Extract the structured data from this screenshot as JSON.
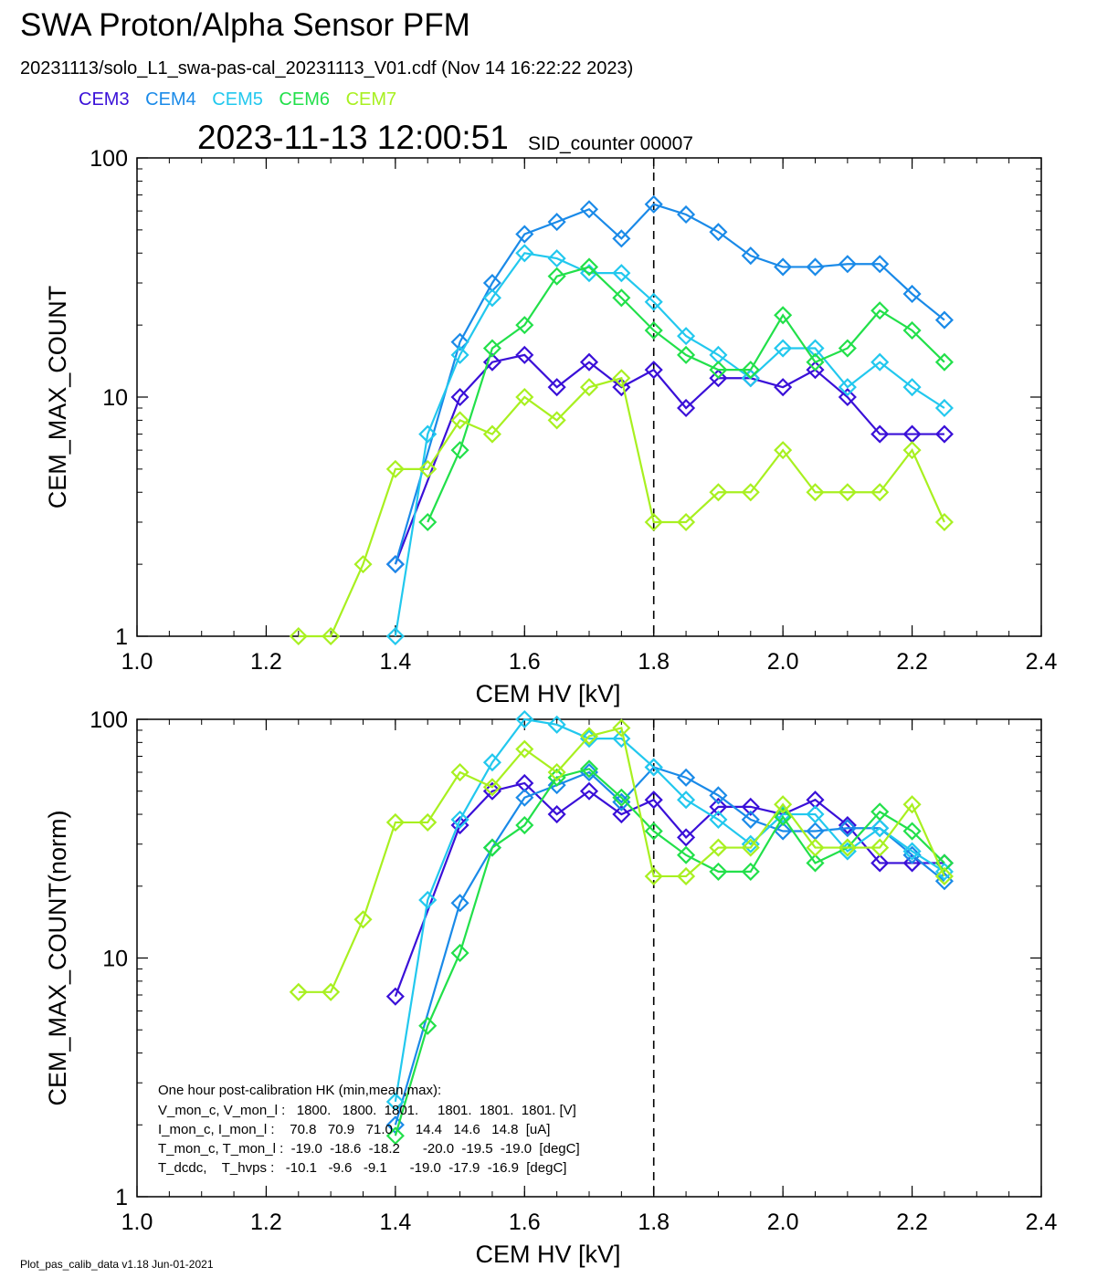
{
  "header": {
    "title": "SWA Proton/Alpha Sensor PFM",
    "subtitle": "20231113/solo_L1_swa-pas-cal_20231113_V01.cdf  (Nov 14 16:22:22 2023)",
    "timestamp": "2023-11-13 12:00:51",
    "sid_counter": "SID_counter 00007"
  },
  "footer": "Plot_pas_calib_data v1.18 Jun-01-2021",
  "colors": {
    "CEM3": "#3a10d8",
    "CEM4": "#1a8ae8",
    "CEM5": "#22c8ee",
    "CEM6": "#22e04a",
    "CEM7": "#a8f020"
  },
  "legend": [
    "CEM3",
    "CEM4",
    "CEM5",
    "CEM6",
    "CEM7"
  ],
  "hk_box": {
    "title": "One hour post-calibration HK (min,mean,max):",
    "rows": [
      "V_mon_c, V_mon_l :   1800.   1800.  1801.     1801.  1801.  1801. [V]",
      "I_mon_c, I_mon_l :    70.8   70.9   71.0      14.4   14.6   14.8  [uA]",
      "T_mon_c, T_mon_l :  -19.0  -18.6  -18.2      -20.0  -19.5  -19.0  [degC]",
      "T_dcdc,    T_hvps :   -10.1   -9.6   -9.1      -19.0  -17.9  -16.9  [degC]"
    ]
  },
  "chart_data": [
    {
      "type": "line",
      "xlabel": "CEM HV [kV]",
      "ylabel": "CEM_MAX_COUNT",
      "xlim": [
        1.0,
        2.4
      ],
      "ylim": [
        1,
        100
      ],
      "yscale": "log",
      "xticks": [
        "1.0",
        "1.2",
        "1.4",
        "1.6",
        "1.8",
        "2.0",
        "2.2",
        "2.4"
      ],
      "yticks": [
        "1",
        "10",
        "100"
      ],
      "vline": 1.8,
      "series": [
        {
          "name": "CEM3",
          "x": [
            1.4,
            1.5,
            1.55,
            1.6,
            1.65,
            1.7,
            1.75,
            1.8,
            1.85,
            1.9,
            1.95,
            2.0,
            2.05,
            2.1,
            2.15,
            2.2,
            2.25
          ],
          "y": [
            2,
            10,
            14,
            15,
            11,
            14,
            11,
            13,
            9,
            12,
            12,
            11,
            13,
            10,
            7,
            7,
            7
          ]
        },
        {
          "name": "CEM4",
          "x": [
            1.4,
            1.5,
            1.55,
            1.6,
            1.65,
            1.7,
            1.75,
            1.8,
            1.85,
            1.9,
            1.95,
            2.0,
            2.05,
            2.1,
            2.15,
            2.2,
            2.25
          ],
          "y": [
            2,
            17,
            30,
            48,
            54,
            61,
            46,
            64,
            58,
            49,
            39,
            35,
            35,
            36,
            36,
            27,
            21
          ]
        },
        {
          "name": "CEM5",
          "x": [
            1.4,
            1.45,
            1.5,
            1.55,
            1.6,
            1.65,
            1.7,
            1.75,
            1.8,
            1.85,
            1.9,
            1.95,
            2.0,
            2.05,
            2.1,
            2.15,
            2.2,
            2.25
          ],
          "y": [
            1,
            7,
            15,
            26,
            40,
            38,
            33,
            33,
            25,
            18,
            15,
            12,
            16,
            16,
            11,
            14,
            11,
            9
          ]
        },
        {
          "name": "CEM6",
          "x": [
            1.45,
            1.5,
            1.55,
            1.6,
            1.65,
            1.7,
            1.75,
            1.8,
            1.85,
            1.9,
            1.95,
            2.0,
            2.05,
            2.1,
            2.15,
            2.2,
            2.25
          ],
          "y": [
            3,
            6,
            16,
            20,
            32,
            35,
            26,
            19,
            15,
            13,
            13,
            22,
            14,
            16,
            23,
            19,
            14
          ]
        },
        {
          "name": "CEM7",
          "x": [
            1.25,
            1.3,
            1.35,
            1.4,
            1.45,
            1.5,
            1.55,
            1.6,
            1.65,
            1.7,
            1.75,
            1.8,
            1.85,
            1.9,
            1.95,
            2.0,
            2.05,
            2.1,
            2.15,
            2.2,
            2.25
          ],
          "y": [
            1,
            1,
            2,
            5,
            5,
            8,
            7,
            10,
            8,
            11,
            12,
            3,
            3,
            4,
            4,
            6,
            4,
            4,
            4,
            6,
            3
          ]
        }
      ]
    },
    {
      "type": "line",
      "xlabel": "CEM HV [kV]",
      "ylabel": "CEM_MAX_COUNT(norm)",
      "xlim": [
        1.0,
        2.4
      ],
      "ylim": [
        1,
        100
      ],
      "yscale": "log",
      "xticks": [
        "1.0",
        "1.2",
        "1.4",
        "1.6",
        "1.8",
        "2.0",
        "2.2",
        "2.4"
      ],
      "yticks": [
        "1",
        "10",
        "100"
      ],
      "vline": 1.8,
      "series": [
        {
          "name": "CEM3",
          "x": [
            1.4,
            1.5,
            1.55,
            1.6,
            1.65,
            1.7,
            1.75,
            1.8,
            1.85,
            1.9,
            1.95,
            2.0,
            2.05,
            2.1,
            2.15,
            2.2,
            2.25
          ],
          "y": [
            6.9,
            36,
            50,
            54,
            40,
            50,
            40,
            46,
            32,
            43,
            43,
            40,
            46,
            36,
            25,
            25,
            25
          ]
        },
        {
          "name": "CEM4",
          "x": [
            1.4,
            1.5,
            1.55,
            1.6,
            1.65,
            1.7,
            1.75,
            1.8,
            1.85,
            1.9,
            1.95,
            2.0,
            2.05,
            2.1,
            2.15,
            2.2,
            2.25
          ],
          "y": [
            2,
            17,
            29,
            47,
            53,
            60,
            45,
            63,
            57,
            48,
            38,
            34,
            34,
            35,
            35,
            27,
            21
          ]
        },
        {
          "name": "CEM5",
          "x": [
            1.4,
            1.45,
            1.5,
            1.55,
            1.6,
            1.65,
            1.7,
            1.75,
            1.8,
            1.85,
            1.9,
            1.95,
            2.0,
            2.05,
            2.1,
            2.15,
            2.2,
            2.25
          ],
          "y": [
            2.5,
            17.5,
            38,
            66,
            100,
            95,
            83,
            83,
            63,
            46,
            38,
            30,
            40,
            40,
            28,
            35,
            28,
            23
          ]
        },
        {
          "name": "CEM6",
          "x": [
            1.4,
            1.45,
            1.5,
            1.55,
            1.6,
            1.65,
            1.7,
            1.75,
            1.8,
            1.85,
            1.9,
            1.95,
            2.0,
            2.05,
            2.1,
            2.15,
            2.2,
            2.25
          ],
          "y": [
            1.8,
            5.2,
            10.5,
            29,
            36,
            57,
            62,
            47,
            34,
            27,
            23,
            23,
            39,
            25,
            29,
            41,
            34,
            25
          ]
        },
        {
          "name": "CEM7",
          "x": [
            1.25,
            1.3,
            1.35,
            1.4,
            1.45,
            1.5,
            1.55,
            1.6,
            1.65,
            1.7,
            1.75,
            1.8,
            1.85,
            1.9,
            1.95,
            2.0,
            2.05,
            2.1,
            2.15,
            2.2,
            2.25
          ],
          "y": [
            7.2,
            7.2,
            14.5,
            37,
            37,
            60,
            52,
            75,
            60,
            85,
            92,
            22,
            22,
            29,
            29,
            44,
            29,
            29,
            29,
            44,
            22
          ]
        }
      ]
    }
  ]
}
